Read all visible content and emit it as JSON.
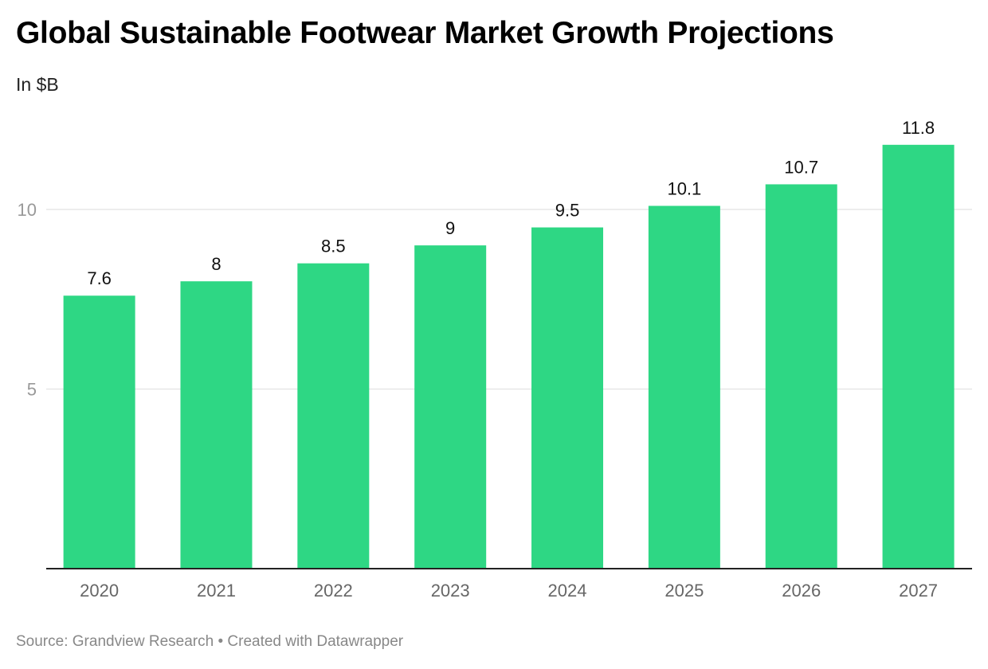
{
  "title": "Global Sustainable Footwear Market Growth Projections",
  "subtitle": "In $B",
  "footer": {
    "source_label": "Source:",
    "source": "Grandview Research",
    "separator": "•",
    "credit": "Created with Datawrapper"
  },
  "chart_data": {
    "type": "bar",
    "title": "Global Sustainable Footwear Market Growth Projections",
    "subtitle": "In $B",
    "xlabel": "",
    "ylabel": "",
    "categories": [
      "2020",
      "2021",
      "2022",
      "2023",
      "2024",
      "2025",
      "2026",
      "2027"
    ],
    "values": [
      7.6,
      8,
      8.5,
      9,
      9.5,
      10.1,
      10.7,
      11.8
    ],
    "data_labels": [
      "7.6",
      "8",
      "8.5",
      "9",
      "9.5",
      "10.1",
      "10.7",
      "11.8"
    ],
    "ylim": [
      0,
      12
    ],
    "yticks": [
      5,
      10
    ],
    "grid": true,
    "legend": "none",
    "colors": {
      "bar": "#2ed784",
      "grid": "#e2e2e2",
      "baseline": "#222222"
    }
  }
}
